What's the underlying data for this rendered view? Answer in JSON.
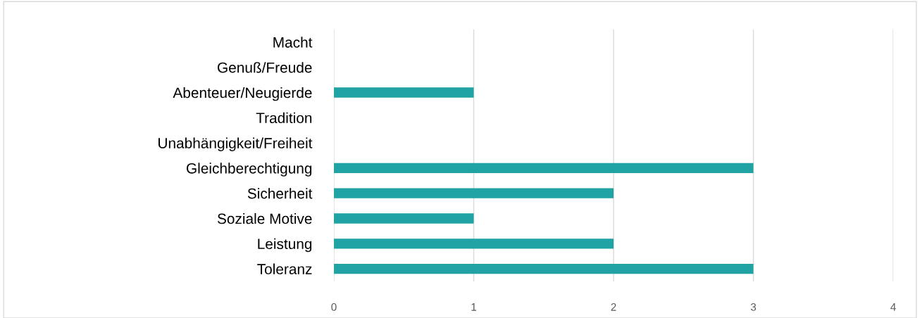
{
  "chart_data": {
    "type": "bar",
    "orientation": "horizontal",
    "categories": [
      "Macht",
      "Genuß/Freude",
      "Abenteuer/Neugierde",
      "Tradition",
      "Unabhängigkeit/Freiheit",
      "Gleichberechtigung",
      "Sicherheit",
      "Soziale Motive",
      "Leistung",
      "Toleranz"
    ],
    "values": [
      0,
      0,
      1,
      0,
      0,
      3,
      2,
      1,
      2,
      3
    ],
    "color": "#21a3a3",
    "xlim": [
      0,
      4
    ],
    "xticks": [
      0,
      1,
      2,
      3,
      4
    ],
    "grid": "x"
  }
}
